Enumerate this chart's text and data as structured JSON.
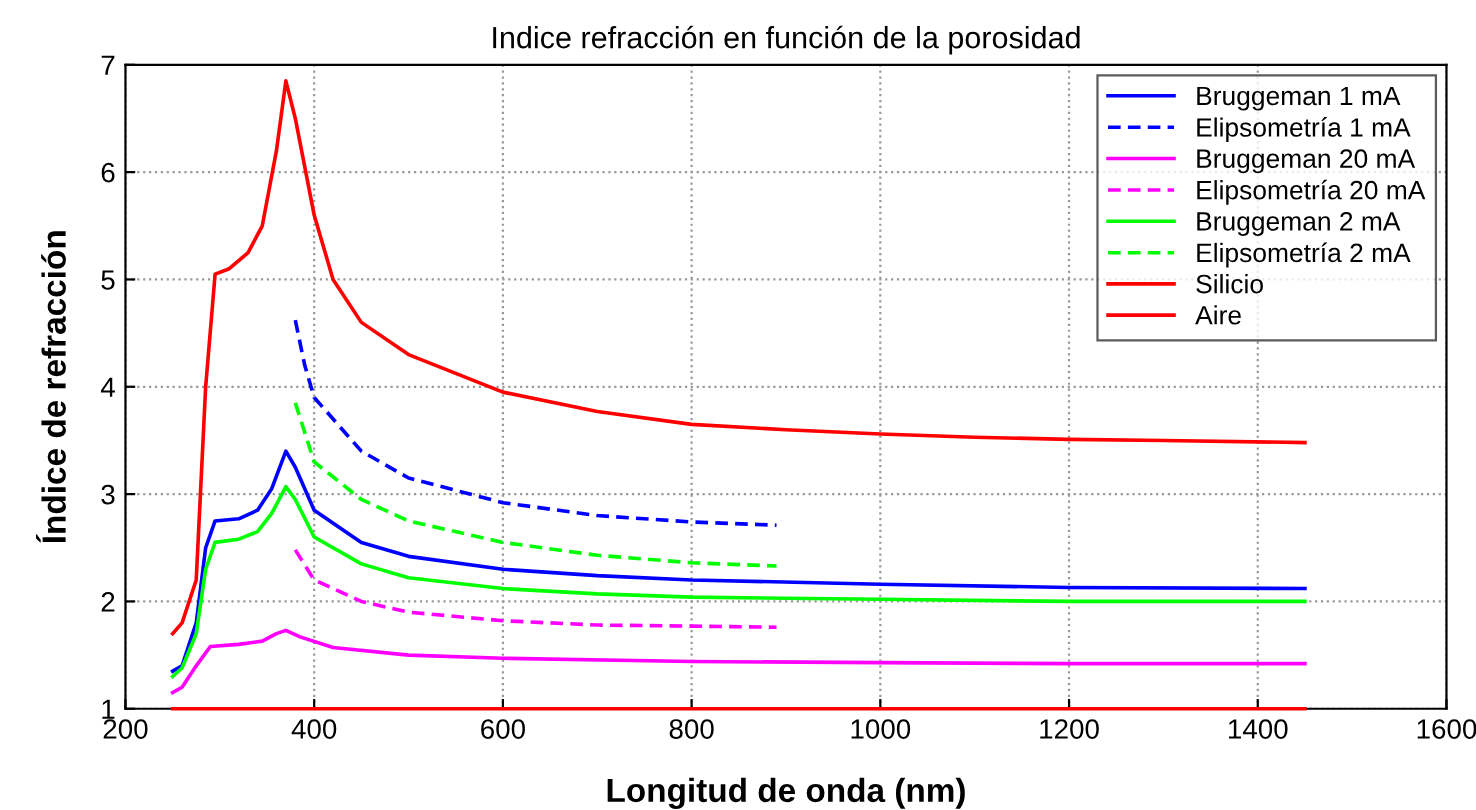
{
  "chart_data": {
    "type": "line",
    "title": "Indice refracción en función de la porosidad",
    "xlabel": "Longitud de onda (nm)",
    "ylabel": "Índice de refracción",
    "xlim": [
      200,
      1600
    ],
    "xticks": [
      200,
      400,
      600,
      800,
      1000,
      1200,
      1400,
      1600
    ],
    "ylim": [
      1,
      7
    ],
    "yticks": [
      1,
      2,
      3,
      4,
      5,
      6,
      7
    ],
    "grid": true,
    "legend": "top right",
    "marker": "none",
    "series": [
      {
        "name": "Bruggeman 1 mA",
        "color": "#0000ff",
        "line_style": "solid",
        "x": [
          250,
          260,
          275,
          285,
          295,
          320,
          340,
          355,
          370,
          380,
          400,
          450,
          500,
          600,
          700,
          800,
          1000,
          1200,
          1450
        ],
        "values": [
          1.35,
          1.4,
          1.8,
          2.5,
          2.75,
          2.77,
          2.85,
          3.05,
          3.4,
          3.25,
          2.85,
          2.55,
          2.42,
          2.3,
          2.24,
          2.2,
          2.16,
          2.13,
          2.12
        ]
      },
      {
        "name": "Elipsometría 1 mA",
        "color": "#0000ff",
        "line_style": "dashed",
        "x": [
          380,
          390,
          400,
          450,
          500,
          600,
          700,
          800,
          890
        ],
        "values": [
          4.62,
          4.2,
          3.9,
          3.4,
          3.15,
          2.92,
          2.8,
          2.74,
          2.71
        ]
      },
      {
        "name": "Bruggeman 20 mA",
        "color": "#ff00ff",
        "line_style": "solid",
        "x": [
          250,
          260,
          275,
          290,
          320,
          345,
          360,
          370,
          385,
          420,
          500,
          600,
          800,
          1000,
          1200,
          1450
        ],
        "values": [
          1.15,
          1.2,
          1.4,
          1.58,
          1.6,
          1.63,
          1.7,
          1.73,
          1.67,
          1.57,
          1.5,
          1.47,
          1.44,
          1.43,
          1.42,
          1.42
        ]
      },
      {
        "name": "Elipsometría 20 mA",
        "color": "#ff00ff",
        "line_style": "dashed",
        "x": [
          380,
          400,
          450,
          500,
          600,
          700,
          800,
          890
        ],
        "values": [
          2.48,
          2.2,
          2.0,
          1.9,
          1.82,
          1.78,
          1.77,
          1.76
        ]
      },
      {
        "name": "Bruggeman 2 mA",
        "color": "#00ff00",
        "line_style": "solid",
        "x": [
          250,
          260,
          275,
          285,
          295,
          320,
          340,
          355,
          370,
          380,
          400,
          450,
          500,
          600,
          700,
          800,
          1000,
          1200,
          1450
        ],
        "values": [
          1.3,
          1.38,
          1.7,
          2.3,
          2.55,
          2.58,
          2.65,
          2.82,
          3.07,
          2.95,
          2.6,
          2.35,
          2.22,
          2.12,
          2.07,
          2.04,
          2.02,
          2.0,
          2.0
        ]
      },
      {
        "name": "Elipsometría 2 mA",
        "color": "#00ff00",
        "line_style": "dashed",
        "x": [
          380,
          400,
          450,
          500,
          600,
          700,
          800,
          890
        ],
        "values": [
          3.85,
          3.3,
          2.95,
          2.75,
          2.55,
          2.43,
          2.36,
          2.33
        ]
      },
      {
        "name": "Silicio",
        "color": "#ff0000",
        "line_style": "solid",
        "x": [
          250,
          260,
          275,
          285,
          295,
          310,
          330,
          345,
          360,
          370,
          380,
          400,
          420,
          450,
          500,
          600,
          700,
          800,
          900,
          1000,
          1100,
          1200,
          1300,
          1450
        ],
        "values": [
          1.7,
          1.8,
          2.2,
          4.0,
          5.05,
          5.1,
          5.25,
          5.5,
          6.2,
          6.85,
          6.5,
          5.6,
          5.0,
          4.6,
          4.3,
          3.95,
          3.77,
          3.65,
          3.6,
          3.56,
          3.53,
          3.51,
          3.5,
          3.48
        ]
      },
      {
        "name": "Aire",
        "color": "#ff0000",
        "line_style": "solid",
        "x": [
          250,
          1450
        ],
        "values": [
          1,
          1
        ]
      }
    ]
  }
}
